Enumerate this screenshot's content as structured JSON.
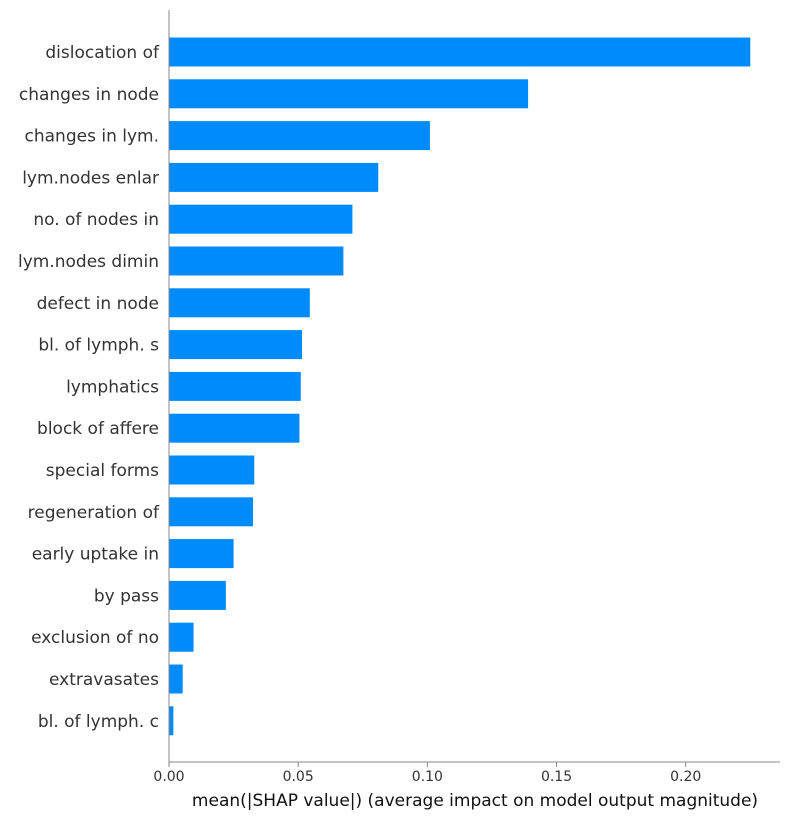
{
  "chart_data": {
    "type": "bar",
    "orientation": "horizontal",
    "categories": [
      "dislocation of",
      "changes in node",
      "changes in lym.",
      "lym.nodes enlar",
      "no. of nodes in",
      "lym.nodes dimin",
      "defect in node",
      "bl. of lymph. s",
      "lymphatics",
      "block of affere",
      "special forms",
      "regeneration of",
      "early uptake in",
      "by pass",
      "exclusion of no",
      "extravasates",
      "bl. of lymph. c"
    ],
    "values": [
      0.225,
      0.139,
      0.101,
      0.081,
      0.071,
      0.0675,
      0.0545,
      0.0515,
      0.051,
      0.0505,
      0.033,
      0.0325,
      0.025,
      0.022,
      0.0095,
      0.0053,
      0.0017
    ],
    "xticks": [
      "0.00",
      "0.05",
      "0.10",
      "0.15",
      "0.20"
    ],
    "xtick_values": [
      0,
      0.05,
      0.1,
      0.15,
      0.2
    ],
    "xlim": [
      0,
      0.2365
    ],
    "xlabel": "mean(|SHAP value|) (average impact on model output magnitude)",
    "ylabel": "",
    "title": "",
    "bar_color": "#008bfb",
    "grid": false,
    "legend": "none"
  }
}
